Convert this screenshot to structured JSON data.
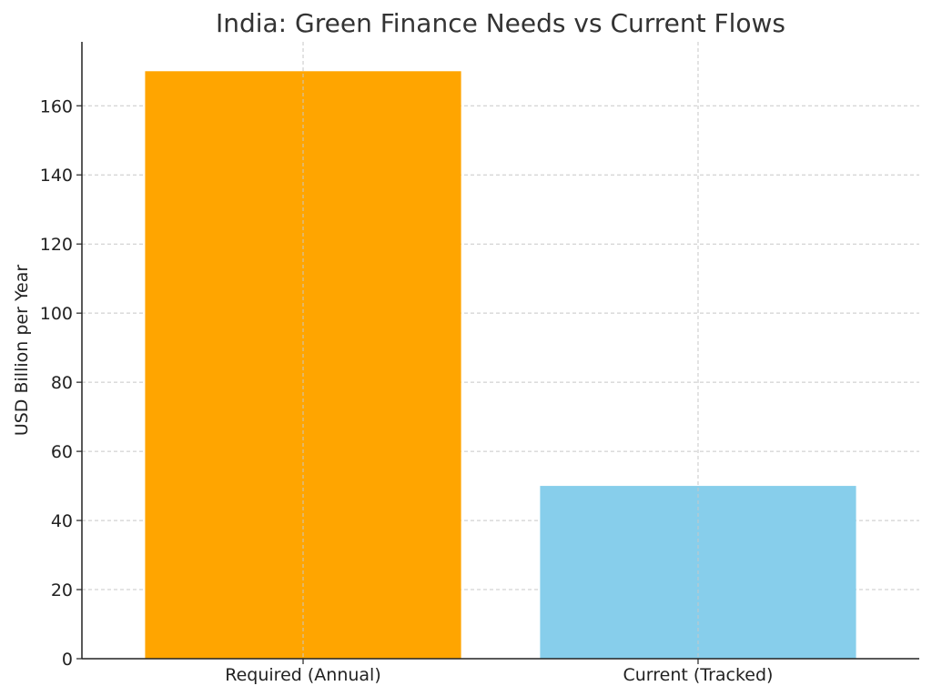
{
  "chart_data": {
    "type": "bar",
    "title": "India: Green Finance Needs vs Current Flows",
    "xlabel": "",
    "ylabel": "USD Billion per Year",
    "categories": [
      "Required (Annual)",
      "Current (Tracked)"
    ],
    "values": [
      170,
      50
    ],
    "colors": [
      "#FFA500",
      "#87CEEB"
    ],
    "ylim": [
      0,
      178.5
    ],
    "yticks": [
      0,
      20,
      40,
      60,
      80,
      100,
      120,
      140,
      160
    ],
    "grid": true,
    "legend": "none"
  }
}
